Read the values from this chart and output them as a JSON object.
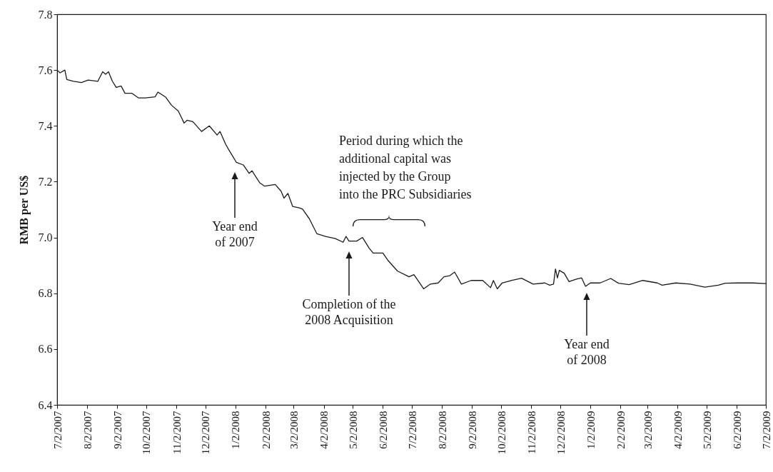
{
  "chart_data": {
    "type": "line",
    "ylabel": "RMB per US$",
    "xlim": [
      "2007-07-02",
      "2009-07-02"
    ],
    "xticks": [
      {
        "value": "2007-07-02",
        "label": "7/2/2007"
      },
      {
        "value": "2007-08-02",
        "label": "8/2/2007"
      },
      {
        "value": "2007-09-02",
        "label": "9/2/2007"
      },
      {
        "value": "2007-10-02",
        "label": "10/2/2007"
      },
      {
        "value": "2007-11-02",
        "label": "11/2/2007"
      },
      {
        "value": "2007-12-02",
        "label": "12/2/2007"
      },
      {
        "value": "2008-01-02",
        "label": "1/2/2008"
      },
      {
        "value": "2008-02-02",
        "label": "2/2/2008"
      },
      {
        "value": "2008-03-02",
        "label": "3/2/2008"
      },
      {
        "value": "2008-04-02",
        "label": "4/2/2008"
      },
      {
        "value": "2008-05-02",
        "label": "5/2/2008"
      },
      {
        "value": "2008-06-02",
        "label": "6/2/2008"
      },
      {
        "value": "2008-07-02",
        "label": "7/2/2008"
      },
      {
        "value": "2008-08-02",
        "label": "8/2/2008"
      },
      {
        "value": "2008-09-02",
        "label": "9/2/2008"
      },
      {
        "value": "2008-10-02",
        "label": "10/2/2008"
      },
      {
        "value": "2008-11-02",
        "label": "11/2/2008"
      },
      {
        "value": "2008-12-02",
        "label": "12/2/2008"
      },
      {
        "value": "2009-01-02",
        "label": "1/2/2009"
      },
      {
        "value": "2009-02-02",
        "label": "2/2/2009"
      },
      {
        "value": "2009-03-02",
        "label": "3/2/2009"
      },
      {
        "value": "2009-04-02",
        "label": "4/2/2009"
      },
      {
        "value": "2009-05-02",
        "label": "5/2/2009"
      },
      {
        "value": "2009-06-02",
        "label": "6/2/2009"
      },
      {
        "value": "2009-07-02",
        "label": "7/2/2009"
      }
    ],
    "ylim": [
      6.4,
      7.8
    ],
    "yticks": [
      {
        "value": 6.4,
        "label": "6.4"
      },
      {
        "value": 6.6,
        "label": "6.6"
      },
      {
        "value": 6.8,
        "label": "6.8"
      },
      {
        "value": 7,
        "label": "7.0"
      },
      {
        "value": 7.2,
        "label": "7.2"
      },
      {
        "value": 7.4,
        "label": "7.4"
      },
      {
        "value": 7.6,
        "label": "7.6"
      },
      {
        "value": 7.8,
        "label": "7.8"
      }
    ],
    "x": [
      "2007-07-02",
      "2007-07-05",
      "2007-07-10",
      "2007-07-12",
      "2007-07-19",
      "2007-07-27",
      "2007-08-03",
      "2007-08-13",
      "2007-08-18",
      "2007-08-21",
      "2007-08-24",
      "2007-08-28",
      "2007-09-01",
      "2007-09-06",
      "2007-09-10",
      "2007-09-17",
      "2007-09-24",
      "2007-10-01",
      "2007-10-11",
      "2007-10-14",
      "2007-10-22",
      "2007-10-28",
      "2007-11-04",
      "2007-11-10",
      "2007-11-13",
      "2007-11-19",
      "2007-11-28",
      "2007-12-06",
      "2007-12-14",
      "2007-12-17",
      "2007-12-23",
      "2007-12-28",
      "2008-01-03",
      "2008-01-10",
      "2008-01-16",
      "2008-01-19",
      "2008-01-27",
      "2008-02-01",
      "2008-02-12",
      "2008-02-18",
      "2008-02-21",
      "2008-02-25",
      "2008-03-01",
      "2008-03-07",
      "2008-03-11",
      "2008-03-18",
      "2008-03-26",
      "2008-04-04",
      "2008-04-14",
      "2008-04-22",
      "2008-04-25",
      "2008-04-28",
      "2008-05-06",
      "2008-05-12",
      "2008-05-19",
      "2008-05-23",
      "2008-06-02",
      "2008-06-07",
      "2008-06-17",
      "2008-06-29",
      "2008-07-04",
      "2008-07-09",
      "2008-07-14",
      "2008-07-21",
      "2008-07-29",
      "2008-08-04",
      "2008-08-10",
      "2008-08-15",
      "2008-08-22",
      "2008-09-01",
      "2008-09-13",
      "2008-09-21",
      "2008-09-24",
      "2008-09-28",
      "2008-10-03",
      "2008-10-13",
      "2008-10-23",
      "2008-11-04",
      "2008-11-16",
      "2008-11-21",
      "2008-11-25",
      "2008-11-27",
      "2008-11-29",
      "2008-12-01",
      "2008-12-06",
      "2008-12-11",
      "2008-12-18",
      "2008-12-24",
      "2008-12-28",
      "2009-01-02",
      "2009-01-12",
      "2009-01-23",
      "2009-01-31",
      "2009-02-11",
      "2009-02-25",
      "2009-03-12",
      "2009-03-17",
      "2009-03-31",
      "2009-04-15",
      "2009-04-30",
      "2009-05-14",
      "2009-05-21",
      "2009-06-03",
      "2009-06-18",
      "2009-07-02"
    ],
    "series": [
      {
        "color": "#1a1a1a",
        "values": [
          7.6,
          7.59,
          7.6,
          7.566,
          7.56,
          7.555,
          7.564,
          7.56,
          7.594,
          7.585,
          7.594,
          7.56,
          7.538,
          7.543,
          7.517,
          7.517,
          7.5,
          7.5,
          7.504,
          7.521,
          7.503,
          7.474,
          7.453,
          7.41,
          7.42,
          7.415,
          7.38,
          7.4,
          7.367,
          7.38,
          7.333,
          7.303,
          7.269,
          7.26,
          7.23,
          7.239,
          7.196,
          7.184,
          7.19,
          7.166,
          7.141,
          7.158,
          7.111,
          7.107,
          7.102,
          7.068,
          7.013,
          7.004,
          6.996,
          6.983,
          7.004,
          6.987,
          6.987,
          7.0,
          6.961,
          6.944,
          6.944,
          6.919,
          6.88,
          6.859,
          6.867,
          6.842,
          6.816,
          6.833,
          6.837,
          6.859,
          6.863,
          6.876,
          6.833,
          6.846,
          6.846,
          6.82,
          6.846,
          6.816,
          6.837,
          6.846,
          6.854,
          6.833,
          6.837,
          6.829,
          6.833,
          6.887,
          6.855,
          6.882,
          6.872,
          6.842,
          6.85,
          6.855,
          6.825,
          6.837,
          6.837,
          6.853,
          6.836,
          6.831,
          6.846,
          6.837,
          6.829,
          6.837,
          6.833,
          6.822,
          6.829,
          6.836,
          6.837,
          6.837,
          6.835
        ]
      }
    ],
    "annotations": [
      "Year end\nof 2007",
      "Period during which the\nadditional capital was\ninjected by the Group\ninto the PRC Subsidiaries",
      "Completion of the\n2008 Acquisition",
      "Year end\nof 2008"
    ]
  }
}
